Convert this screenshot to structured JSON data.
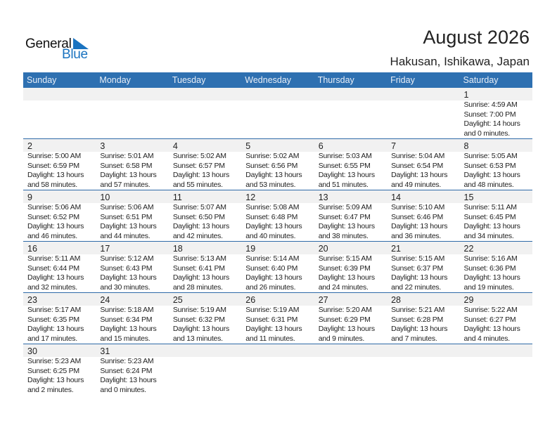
{
  "logo": {
    "general": "General",
    "blue": "Blue"
  },
  "header": {
    "title": "August 2026",
    "location": "Hakusan, Ishikawa, Japan"
  },
  "colors": {
    "header_bg": "#2e70b1",
    "row_divider": "#2e6aa8",
    "date_strip": "#f1f1f1",
    "logo_blue": "#1a73c0"
  },
  "days": [
    "Sunday",
    "Monday",
    "Tuesday",
    "Wednesday",
    "Thursday",
    "Friday",
    "Saturday"
  ],
  "weeks": [
    [
      null,
      null,
      null,
      null,
      null,
      null,
      {
        "day": "1",
        "sunrise": "Sunrise: 4:59 AM",
        "sunset": "Sunset: 7:00 PM",
        "daylight1": "Daylight: 14 hours",
        "daylight2": "and 0 minutes."
      }
    ],
    [
      {
        "day": "2",
        "sunrise": "Sunrise: 5:00 AM",
        "sunset": "Sunset: 6:59 PM",
        "daylight1": "Daylight: 13 hours",
        "daylight2": "and 58 minutes."
      },
      {
        "day": "3",
        "sunrise": "Sunrise: 5:01 AM",
        "sunset": "Sunset: 6:58 PM",
        "daylight1": "Daylight: 13 hours",
        "daylight2": "and 57 minutes."
      },
      {
        "day": "4",
        "sunrise": "Sunrise: 5:02 AM",
        "sunset": "Sunset: 6:57 PM",
        "daylight1": "Daylight: 13 hours",
        "daylight2": "and 55 minutes."
      },
      {
        "day": "5",
        "sunrise": "Sunrise: 5:02 AM",
        "sunset": "Sunset: 6:56 PM",
        "daylight1": "Daylight: 13 hours",
        "daylight2": "and 53 minutes."
      },
      {
        "day": "6",
        "sunrise": "Sunrise: 5:03 AM",
        "sunset": "Sunset: 6:55 PM",
        "daylight1": "Daylight: 13 hours",
        "daylight2": "and 51 minutes."
      },
      {
        "day": "7",
        "sunrise": "Sunrise: 5:04 AM",
        "sunset": "Sunset: 6:54 PM",
        "daylight1": "Daylight: 13 hours",
        "daylight2": "and 49 minutes."
      },
      {
        "day": "8",
        "sunrise": "Sunrise: 5:05 AM",
        "sunset": "Sunset: 6:53 PM",
        "daylight1": "Daylight: 13 hours",
        "daylight2": "and 48 minutes."
      }
    ],
    [
      {
        "day": "9",
        "sunrise": "Sunrise: 5:06 AM",
        "sunset": "Sunset: 6:52 PM",
        "daylight1": "Daylight: 13 hours",
        "daylight2": "and 46 minutes."
      },
      {
        "day": "10",
        "sunrise": "Sunrise: 5:06 AM",
        "sunset": "Sunset: 6:51 PM",
        "daylight1": "Daylight: 13 hours",
        "daylight2": "and 44 minutes."
      },
      {
        "day": "11",
        "sunrise": "Sunrise: 5:07 AM",
        "sunset": "Sunset: 6:50 PM",
        "daylight1": "Daylight: 13 hours",
        "daylight2": "and 42 minutes."
      },
      {
        "day": "12",
        "sunrise": "Sunrise: 5:08 AM",
        "sunset": "Sunset: 6:48 PM",
        "daylight1": "Daylight: 13 hours",
        "daylight2": "and 40 minutes."
      },
      {
        "day": "13",
        "sunrise": "Sunrise: 5:09 AM",
        "sunset": "Sunset: 6:47 PM",
        "daylight1": "Daylight: 13 hours",
        "daylight2": "and 38 minutes."
      },
      {
        "day": "14",
        "sunrise": "Sunrise: 5:10 AM",
        "sunset": "Sunset: 6:46 PM",
        "daylight1": "Daylight: 13 hours",
        "daylight2": "and 36 minutes."
      },
      {
        "day": "15",
        "sunrise": "Sunrise: 5:11 AM",
        "sunset": "Sunset: 6:45 PM",
        "daylight1": "Daylight: 13 hours",
        "daylight2": "and 34 minutes."
      }
    ],
    [
      {
        "day": "16",
        "sunrise": "Sunrise: 5:11 AM",
        "sunset": "Sunset: 6:44 PM",
        "daylight1": "Daylight: 13 hours",
        "daylight2": "and 32 minutes."
      },
      {
        "day": "17",
        "sunrise": "Sunrise: 5:12 AM",
        "sunset": "Sunset: 6:43 PM",
        "daylight1": "Daylight: 13 hours",
        "daylight2": "and 30 minutes."
      },
      {
        "day": "18",
        "sunrise": "Sunrise: 5:13 AM",
        "sunset": "Sunset: 6:41 PM",
        "daylight1": "Daylight: 13 hours",
        "daylight2": "and 28 minutes."
      },
      {
        "day": "19",
        "sunrise": "Sunrise: 5:14 AM",
        "sunset": "Sunset: 6:40 PM",
        "daylight1": "Daylight: 13 hours",
        "daylight2": "and 26 minutes."
      },
      {
        "day": "20",
        "sunrise": "Sunrise: 5:15 AM",
        "sunset": "Sunset: 6:39 PM",
        "daylight1": "Daylight: 13 hours",
        "daylight2": "and 24 minutes."
      },
      {
        "day": "21",
        "sunrise": "Sunrise: 5:15 AM",
        "sunset": "Sunset: 6:37 PM",
        "daylight1": "Daylight: 13 hours",
        "daylight2": "and 22 minutes."
      },
      {
        "day": "22",
        "sunrise": "Sunrise: 5:16 AM",
        "sunset": "Sunset: 6:36 PM",
        "daylight1": "Daylight: 13 hours",
        "daylight2": "and 19 minutes."
      }
    ],
    [
      {
        "day": "23",
        "sunrise": "Sunrise: 5:17 AM",
        "sunset": "Sunset: 6:35 PM",
        "daylight1": "Daylight: 13 hours",
        "daylight2": "and 17 minutes."
      },
      {
        "day": "24",
        "sunrise": "Sunrise: 5:18 AM",
        "sunset": "Sunset: 6:34 PM",
        "daylight1": "Daylight: 13 hours",
        "daylight2": "and 15 minutes."
      },
      {
        "day": "25",
        "sunrise": "Sunrise: 5:19 AM",
        "sunset": "Sunset: 6:32 PM",
        "daylight1": "Daylight: 13 hours",
        "daylight2": "and 13 minutes."
      },
      {
        "day": "26",
        "sunrise": "Sunrise: 5:19 AM",
        "sunset": "Sunset: 6:31 PM",
        "daylight1": "Daylight: 13 hours",
        "daylight2": "and 11 minutes."
      },
      {
        "day": "27",
        "sunrise": "Sunrise: 5:20 AM",
        "sunset": "Sunset: 6:29 PM",
        "daylight1": "Daylight: 13 hours",
        "daylight2": "and 9 minutes."
      },
      {
        "day": "28",
        "sunrise": "Sunrise: 5:21 AM",
        "sunset": "Sunset: 6:28 PM",
        "daylight1": "Daylight: 13 hours",
        "daylight2": "and 7 minutes."
      },
      {
        "day": "29",
        "sunrise": "Sunrise: 5:22 AM",
        "sunset": "Sunset: 6:27 PM",
        "daylight1": "Daylight: 13 hours",
        "daylight2": "and 4 minutes."
      }
    ],
    [
      {
        "day": "30",
        "sunrise": "Sunrise: 5:23 AM",
        "sunset": "Sunset: 6:25 PM",
        "daylight1": "Daylight: 13 hours",
        "daylight2": "and 2 minutes."
      },
      {
        "day": "31",
        "sunrise": "Sunrise: 5:23 AM",
        "sunset": "Sunset: 6:24 PM",
        "daylight1": "Daylight: 13 hours",
        "daylight2": "and 0 minutes."
      },
      null,
      null,
      null,
      null,
      null
    ]
  ]
}
